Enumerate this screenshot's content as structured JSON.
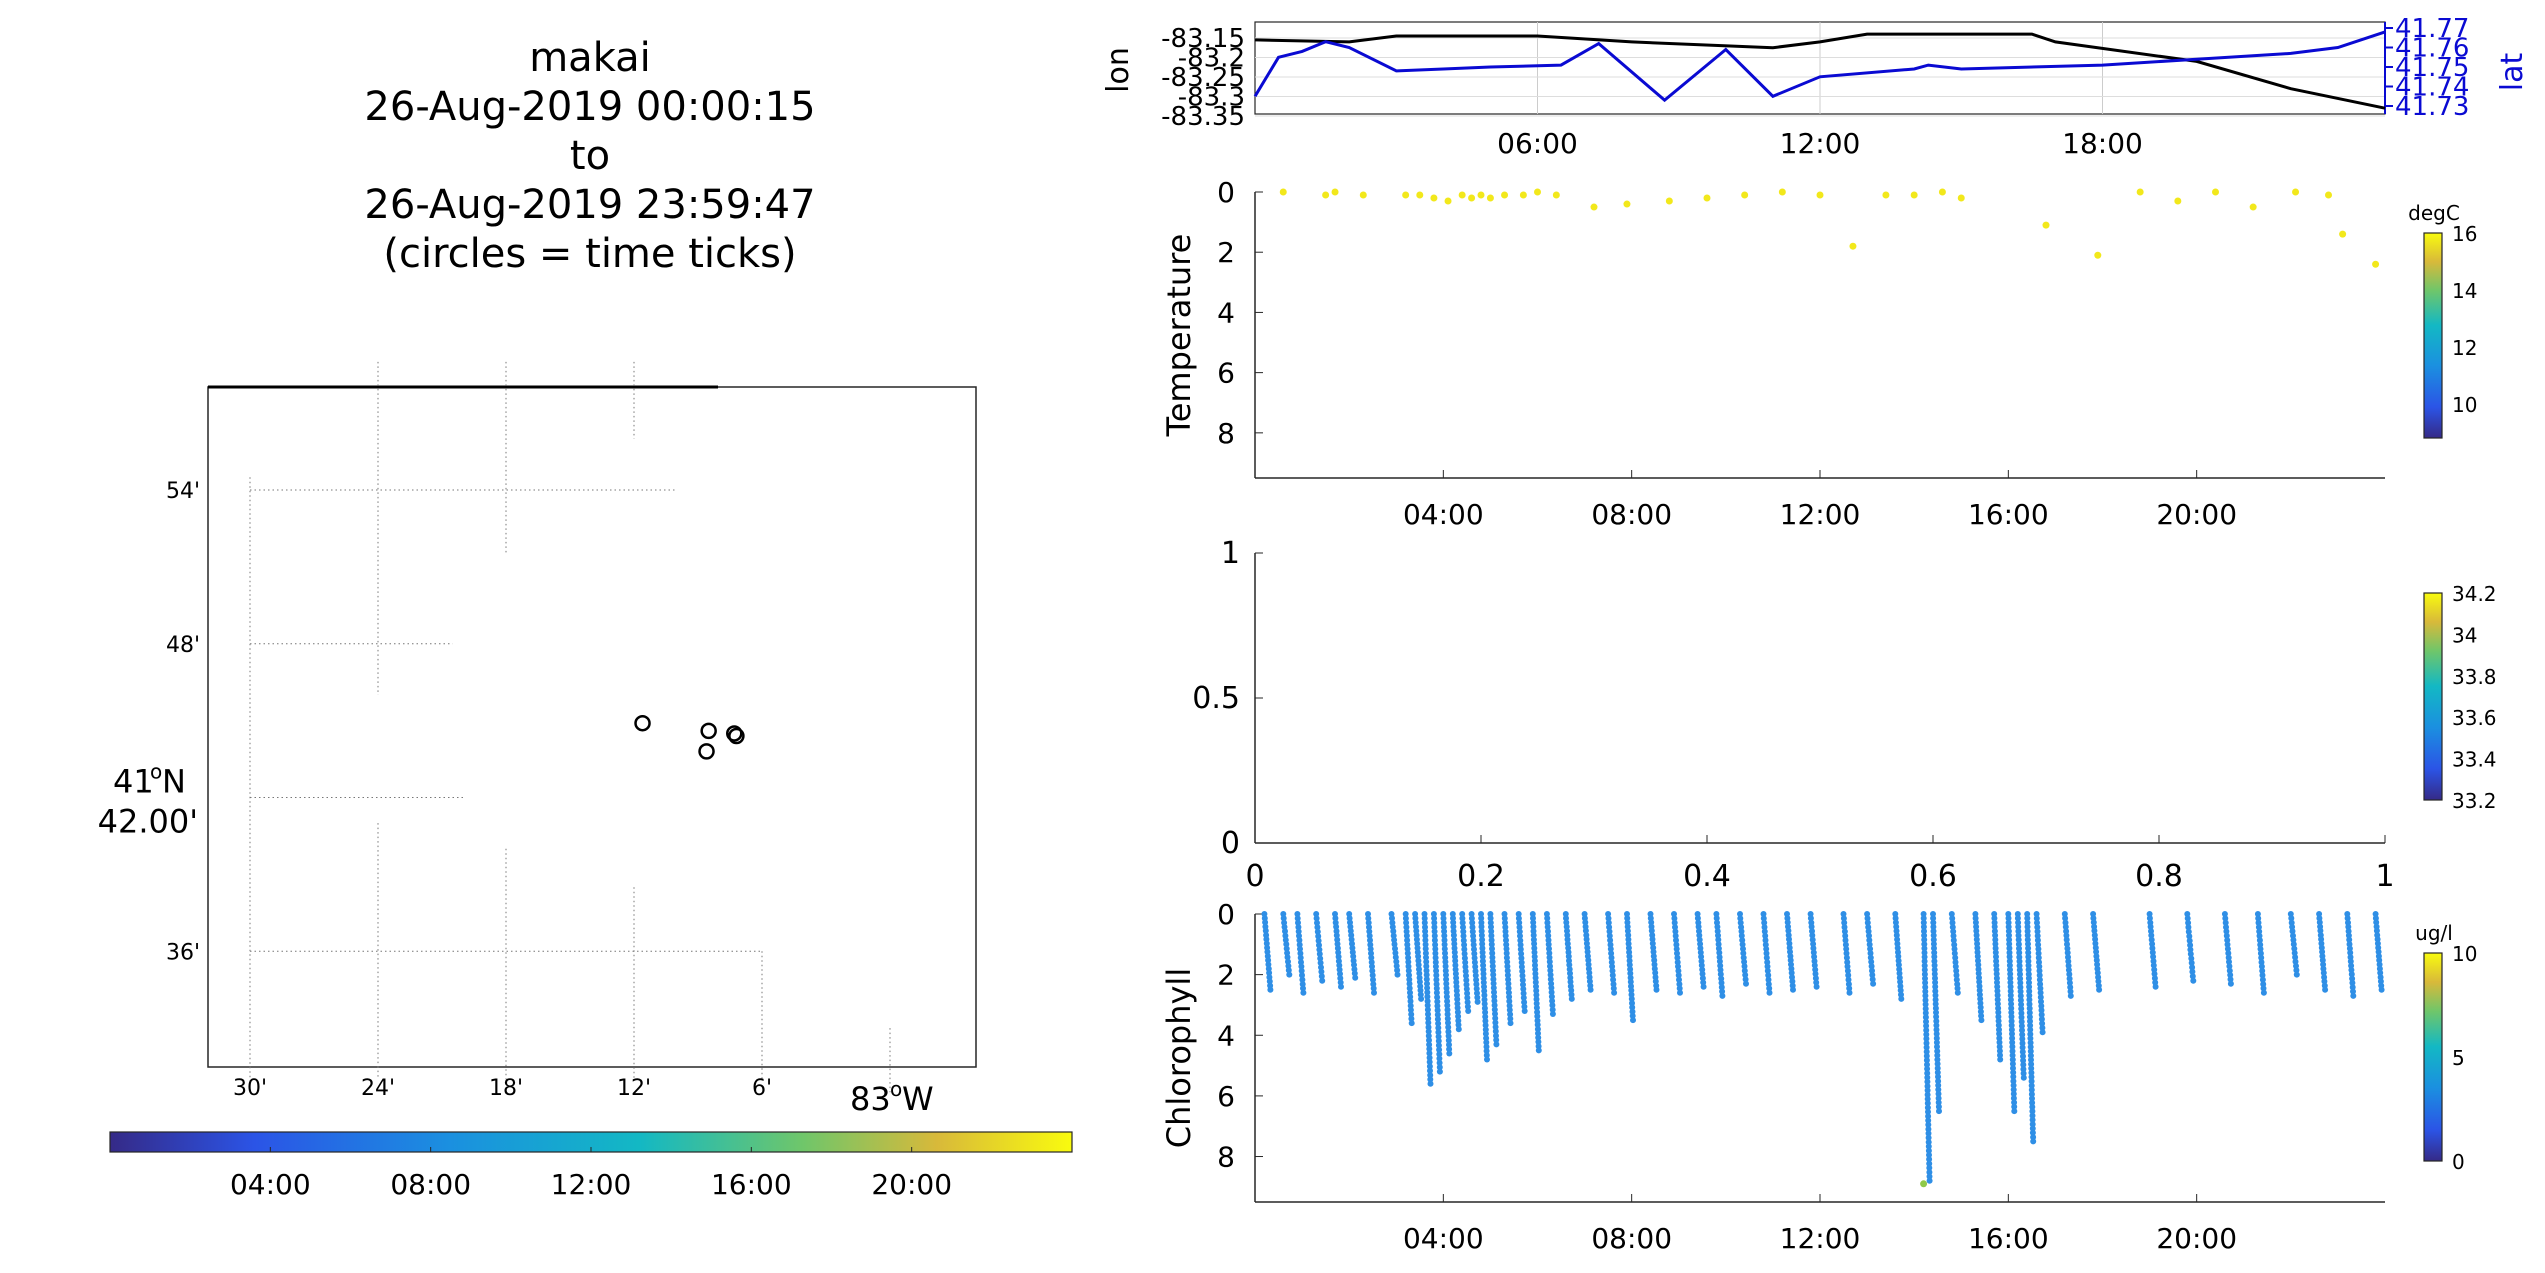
{
  "title": {
    "lines": [
      "makai",
      "26-Aug-2019 00:00:15",
      "to",
      "26-Aug-2019 23:59:47",
      "(circles = time ticks)"
    ]
  },
  "colors": {
    "lon_line": "#000000",
    "lat_line": "#0a0ad2",
    "temperature_points": "#f2e81b",
    "chlorophyll_points": "#2f8fe6",
    "map_circles": "#000000"
  },
  "chart_data": [
    {
      "type": "map",
      "name": "track-map",
      "lat_ticks": [
        "54'",
        "48'",
        "41°N 42.00'",
        "36'"
      ],
      "lon_ticks": [
        "30'",
        "24'",
        "18'",
        "12'",
        "6'",
        "83°W"
      ],
      "lat_center_label": "41",
      "lat_center_unit": "oN",
      "lat_center_minutes": "42.00'",
      "lon_label": "83",
      "lon_unit": "oW",
      "circles": [
        {
          "lon_min": -11.6,
          "lat_min": 44.9
        },
        {
          "lon_min": -8.5,
          "lat_min": 44.6
        },
        {
          "lon_min": -8.6,
          "lat_min": 43.8
        },
        {
          "lon_min": -7.3,
          "lat_min": 44.5
        },
        {
          "lon_min": -7.2,
          "lat_min": 44.4
        }
      ],
      "colorbar_ticks": [
        "04:00",
        "08:00",
        "12:00",
        "16:00",
        "20:00"
      ]
    },
    {
      "type": "line",
      "name": "lon-lat",
      "ylabel": "lon",
      "ylabel_right": "lat",
      "xticks": [
        "06:00",
        "12:00",
        "18:00"
      ],
      "yticks_left": [
        "-83.15",
        "-83.2",
        "-83.25",
        "-83.3",
        "-83.35"
      ],
      "yticks_right": [
        "41.77",
        "41.76",
        "41.75",
        "41.74",
        "41.73"
      ],
      "series": [
        {
          "name": "lon",
          "axis": "left",
          "x_hours": [
            0,
            2,
            3,
            6,
            8,
            11,
            12,
            13,
            16.5,
            17,
            20,
            22,
            24
          ],
          "values": [
            -83.155,
            -83.16,
            -83.145,
            -83.145,
            -83.16,
            -83.175,
            -83.16,
            -83.14,
            -83.14,
            -83.16,
            -83.21,
            -83.28,
            -83.33
          ]
        },
        {
          "name": "lat",
          "axis": "right",
          "x_hours": [
            0,
            0.5,
            1,
            1.5,
            2,
            3,
            4,
            5,
            6.5,
            7.3,
            8.7,
            10,
            11,
            12,
            14,
            14.3,
            15,
            18,
            20,
            22,
            23,
            24
          ],
          "values": [
            41.735,
            41.755,
            41.758,
            41.763,
            41.76,
            41.748,
            41.749,
            41.75,
            41.751,
            41.762,
            41.733,
            41.759,
            41.735,
            41.745,
            41.749,
            41.751,
            41.749,
            41.751,
            41.754,
            41.757,
            41.76,
            41.768
          ]
        }
      ]
    },
    {
      "type": "scatter",
      "name": "temperature",
      "ylabel": "Temperature",
      "yticks": [
        "0",
        "2",
        "4",
        "6",
        "8"
      ],
      "xticks": [
        "04:00",
        "08:00",
        "12:00",
        "16:00",
        "20:00"
      ],
      "colorbar_unit": "degC",
      "colorbar_ticks": [
        "16",
        "14",
        "12",
        "10"
      ],
      "x_hours": [
        0.6,
        1.5,
        1.7,
        2.3,
        3.2,
        3.5,
        3.8,
        4.1,
        4.4,
        4.6,
        4.8,
        5.0,
        5.3,
        5.7,
        6.0,
        6.4,
        7.2,
        7.9,
        8.8,
        9.6,
        10.4,
        11.2,
        12.0,
        12.7,
        13.4,
        14.0,
        14.6,
        15.0,
        16.8,
        17.9,
        18.8,
        19.6,
        20.4,
        21.2,
        22.1,
        22.8,
        23.1,
        23.8
      ],
      "y_depth": [
        0.0,
        0.1,
        0.0,
        0.1,
        0.1,
        0.1,
        0.2,
        0.3,
        0.1,
        0.2,
        0.1,
        0.2,
        0.1,
        0.1,
        0.0,
        0.1,
        0.5,
        0.4,
        0.3,
        0.2,
        0.1,
        0.0,
        0.1,
        1.8,
        0.1,
        0.1,
        0.0,
        0.2,
        1.1,
        2.1,
        0.0,
        0.3,
        0.0,
        0.5,
        0.0,
        0.1,
        1.4,
        2.4
      ],
      "ylim": [
        0,
        9.5
      ]
    },
    {
      "type": "scatter",
      "name": "salinity-empty",
      "yticks": [
        "0",
        "0.5",
        "1"
      ],
      "xticks": [
        "0",
        "0.2",
        "0.4",
        "0.6",
        "0.8",
        "1"
      ],
      "colorbar_ticks": [
        "34.2",
        "34",
        "33.8",
        "33.6",
        "33.4",
        "33.2"
      ],
      "xlim": [
        0,
        1
      ],
      "ylim": [
        0,
        1
      ]
    },
    {
      "type": "scatter",
      "name": "chlorophyll",
      "ylabel": "Chlorophyll",
      "yticks": [
        "0",
        "2",
        "4",
        "6",
        "8"
      ],
      "xticks": [
        "04:00",
        "08:00",
        "12:00",
        "16:00",
        "20:00"
      ],
      "colorbar_unit": "ug/l",
      "colorbar_ticks": [
        "10",
        "5",
        "0"
      ],
      "ylim": [
        0,
        9.5
      ],
      "profiles": [
        {
          "x": 0.2,
          "d": 2.5
        },
        {
          "x": 0.6,
          "d": 2.0
        },
        {
          "x": 0.9,
          "d": 2.6
        },
        {
          "x": 1.3,
          "d": 2.2
        },
        {
          "x": 1.7,
          "d": 2.4
        },
        {
          "x": 2.0,
          "d": 2.1
        },
        {
          "x": 2.4,
          "d": 2.6
        },
        {
          "x": 2.9,
          "d": 2.0
        },
        {
          "x": 3.2,
          "d": 3.6
        },
        {
          "x": 3.4,
          "d": 2.8
        },
        {
          "x": 3.6,
          "d": 5.6
        },
        {
          "x": 3.8,
          "d": 5.2
        },
        {
          "x": 4.0,
          "d": 4.6
        },
        {
          "x": 4.2,
          "d": 3.8
        },
        {
          "x": 4.4,
          "d": 3.2
        },
        {
          "x": 4.6,
          "d": 2.9
        },
        {
          "x": 4.8,
          "d": 4.8
        },
        {
          "x": 5.0,
          "d": 4.3
        },
        {
          "x": 5.3,
          "d": 3.6
        },
        {
          "x": 5.6,
          "d": 3.2
        },
        {
          "x": 5.9,
          "d": 4.5
        },
        {
          "x": 6.2,
          "d": 3.3
        },
        {
          "x": 6.6,
          "d": 2.8
        },
        {
          "x": 7.0,
          "d": 2.5
        },
        {
          "x": 7.5,
          "d": 2.6
        },
        {
          "x": 7.9,
          "d": 3.5
        },
        {
          "x": 8.4,
          "d": 2.5
        },
        {
          "x": 8.9,
          "d": 2.6
        },
        {
          "x": 9.4,
          "d": 2.4
        },
        {
          "x": 9.8,
          "d": 2.7
        },
        {
          "x": 10.3,
          "d": 2.3
        },
        {
          "x": 10.8,
          "d": 2.6
        },
        {
          "x": 11.3,
          "d": 2.5
        },
        {
          "x": 11.8,
          "d": 2.4
        },
        {
          "x": 12.5,
          "d": 2.6
        },
        {
          "x": 13.0,
          "d": 2.3
        },
        {
          "x": 13.6,
          "d": 2.8
        },
        {
          "x": 14.2,
          "d": 8.8
        },
        {
          "x": 14.4,
          "d": 6.5
        },
        {
          "x": 14.8,
          "d": 2.6
        },
        {
          "x": 15.3,
          "d": 3.5
        },
        {
          "x": 15.7,
          "d": 4.8
        },
        {
          "x": 16.0,
          "d": 6.5
        },
        {
          "x": 16.2,
          "d": 5.4
        },
        {
          "x": 16.4,
          "d": 7.5
        },
        {
          "x": 16.6,
          "d": 3.9
        },
        {
          "x": 17.2,
          "d": 2.7
        },
        {
          "x": 17.8,
          "d": 2.5
        },
        {
          "x": 19.0,
          "d": 2.4
        },
        {
          "x": 19.8,
          "d": 2.2
        },
        {
          "x": 20.6,
          "d": 2.3
        },
        {
          "x": 21.3,
          "d": 2.6
        },
        {
          "x": 22.0,
          "d": 2.0
        },
        {
          "x": 22.6,
          "d": 2.5
        },
        {
          "x": 23.2,
          "d": 2.7
        },
        {
          "x": 23.8,
          "d": 2.5
        }
      ],
      "outlier": {
        "x": 14.2,
        "d": 8.9
      }
    }
  ]
}
